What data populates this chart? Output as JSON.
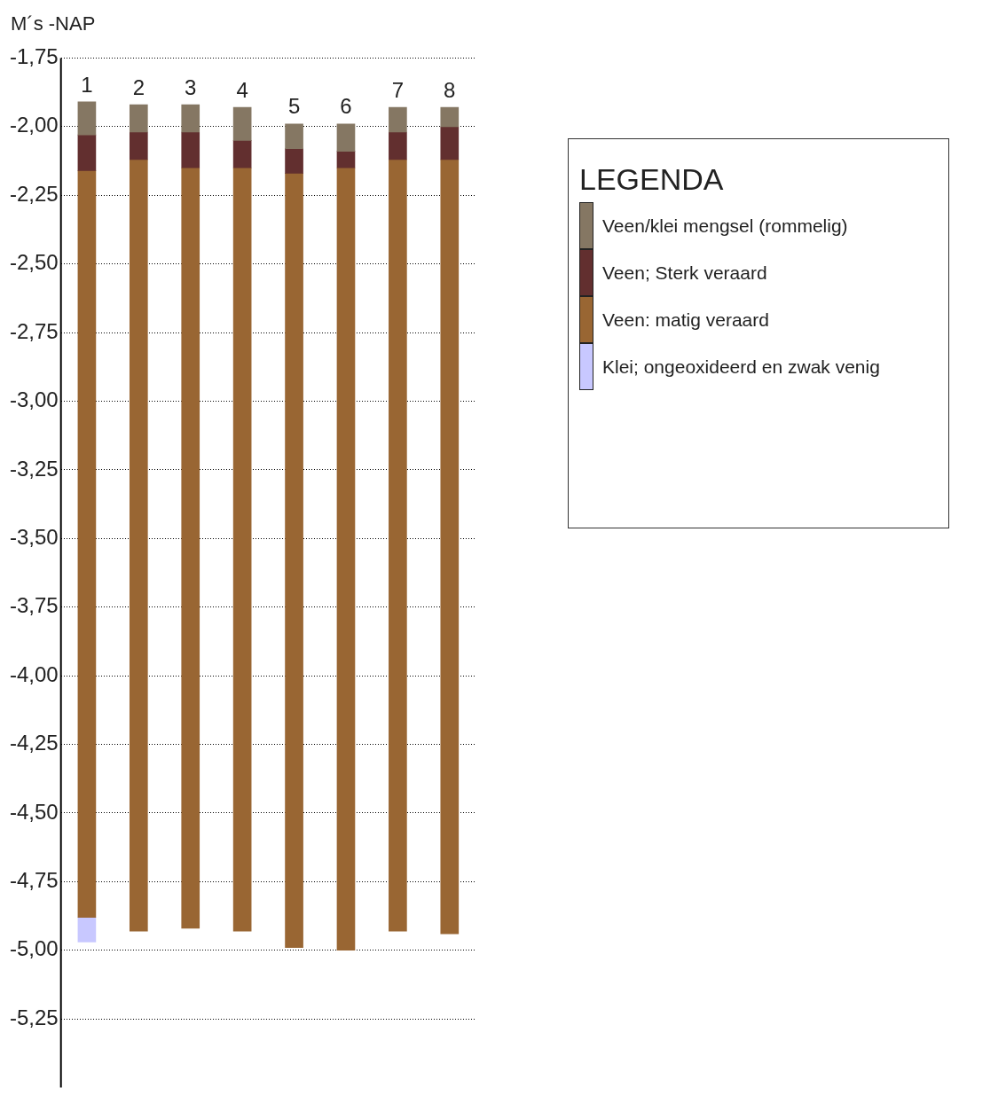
{
  "chart_data": {
    "type": "bar",
    "ylabel": "M´s -NAP",
    "legend_title": "LEGENDA",
    "legend": "top right",
    "grid": "y",
    "line_style": "dotted",
    "categories": [
      "1",
      "2",
      "3",
      "4",
      "5",
      "6",
      "7",
      "8"
    ],
    "series": [
      {
        "name": "Veen/klei mengsel (rommelig)",
        "color": "#857763",
        "base": [
          -1.91,
          -1.92,
          -1.92,
          -1.93,
          -1.99,
          -1.99,
          -1.93,
          -1.93
        ],
        "values": [
          -0.12,
          -0.1,
          -0.1,
          -0.12,
          -0.09,
          -0.1,
          -0.09,
          -0.07
        ]
      },
      {
        "name": "Veen; Sterk veraard",
        "color": "#622f2f",
        "base": [
          -2.03,
          -2.02,
          -2.02,
          -2.05,
          -2.08,
          -2.09,
          -2.02,
          -2.0
        ],
        "values": [
          -0.13,
          -0.1,
          -0.13,
          -0.1,
          -0.09,
          -0.06,
          -0.1,
          -0.12
        ]
      },
      {
        "name": "Veen: matig veraard",
        "color": "#996633",
        "base": [
          -2.16,
          -2.12,
          -2.15,
          -2.15,
          -2.17,
          -2.15,
          -2.12,
          -2.12
        ],
        "values": [
          -2.72,
          -2.81,
          -2.77,
          -2.78,
          -2.82,
          -2.85,
          -2.81,
          -2.82
        ]
      },
      {
        "name": "Klei; ongeoxideerd en zwak venig",
        "color": "#c8c8ff",
        "base": [
          -4.88,
          null,
          null,
          null,
          null,
          null,
          null,
          null
        ],
        "values": [
          -0.09,
          null,
          null,
          null,
          null,
          null,
          null,
          null
        ]
      }
    ],
    "ylim": [
      -5.5,
      -1.75
    ],
    "yticks": [
      {
        "value": -1.75,
        "label": "-1,75"
      },
      {
        "value": -2,
        "label": "-2,00"
      },
      {
        "value": -2.25,
        "label": "-2,25"
      },
      {
        "value": -2.5,
        "label": "-2,50"
      },
      {
        "value": -2.75,
        "label": "-2,75"
      },
      {
        "value": -3,
        "label": "-3,00"
      },
      {
        "value": -3.25,
        "label": "-3,25"
      },
      {
        "value": -3.5,
        "label": "-3,50"
      },
      {
        "value": -3.75,
        "label": "-3,75"
      },
      {
        "value": -4,
        "label": "-4,00"
      },
      {
        "value": -4.25,
        "label": "-4,25"
      },
      {
        "value": -4.5,
        "label": "-4,50"
      },
      {
        "value": -4.75,
        "label": "-4,75"
      },
      {
        "value": -5,
        "label": "-5,00"
      },
      {
        "value": -5.25,
        "label": "-5,25"
      }
    ]
  }
}
